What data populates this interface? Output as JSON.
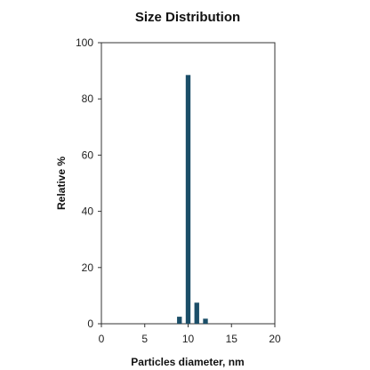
{
  "chart_data": {
    "type": "bar",
    "title": "Size Distribution",
    "xlabel": "Particles diameter, nm",
    "ylabel": "Relative %",
    "xlim": [
      0,
      20
    ],
    "ylim": [
      0,
      100
    ],
    "x_ticks": [
      0,
      5,
      10,
      15,
      20
    ],
    "y_ticks": [
      0,
      20,
      40,
      60,
      80,
      100
    ],
    "grid": false,
    "legend": "none",
    "bar_color": "#1b4e68",
    "x": [
      9,
      10,
      11,
      12
    ],
    "values": [
      2.5,
      88.5,
      7.5,
      1.8
    ]
  }
}
